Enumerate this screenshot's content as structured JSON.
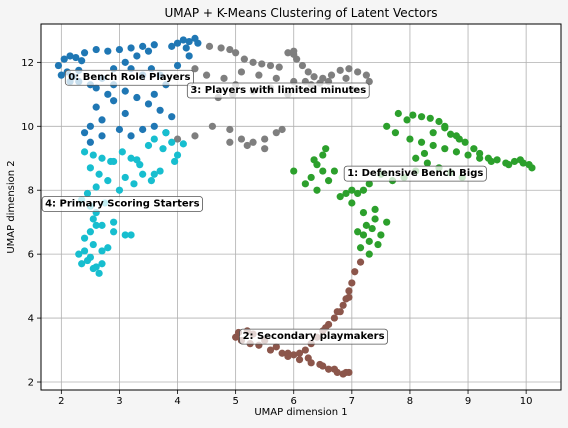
{
  "chart_data": {
    "type": "scatter",
    "title": "UMAP + K-Means Clustering of Latent Vectors",
    "xlabel": "UMAP dimension 1",
    "ylabel": "UMAP dimension 2",
    "xlim": [
      1.65,
      10.6
    ],
    "ylim": [
      1.75,
      13.2
    ],
    "xticks": [
      2,
      3,
      4,
      5,
      6,
      7,
      8,
      9,
      10
    ],
    "yticks": [
      2,
      4,
      6,
      8,
      10,
      12
    ],
    "grid": true,
    "clusters": [
      {
        "id": 0,
        "label": "0: Bench Role Players",
        "color": "#1f77b4",
        "label_pos": [
          2.12,
          11.55
        ],
        "points": [
          [
            2.05,
            12.1
          ],
          [
            2.15,
            12.2
          ],
          [
            2.25,
            12.15
          ],
          [
            2.35,
            12.05
          ],
          [
            1.95,
            11.9
          ],
          [
            2.1,
            11.7
          ],
          [
            2.2,
            11.55
          ],
          [
            2.3,
            11.4
          ],
          [
            2.5,
            11.3
          ],
          [
            2.6,
            11.2
          ],
          [
            2.4,
            12.3
          ],
          [
            2.6,
            12.4
          ],
          [
            2.8,
            12.35
          ],
          [
            3.0,
            12.4
          ],
          [
            3.2,
            12.45
          ],
          [
            3.4,
            12.5
          ],
          [
            3.6,
            12.55
          ],
          [
            3.5,
            12.35
          ],
          [
            3.3,
            12.2
          ],
          [
            3.1,
            12.0
          ],
          [
            2.9,
            11.8
          ],
          [
            2.7,
            11.5
          ],
          [
            2.9,
            11.3
          ],
          [
            3.1,
            11.1
          ],
          [
            3.3,
            10.9
          ],
          [
            3.5,
            10.7
          ],
          [
            3.7,
            10.5
          ],
          [
            3.9,
            10.3
          ],
          [
            3.6,
            11.0
          ],
          [
            3.8,
            11.3
          ],
          [
            3.4,
            11.6
          ],
          [
            3.2,
            11.8
          ],
          [
            2.8,
            11.0
          ],
          [
            2.6,
            10.6
          ],
          [
            2.7,
            10.2
          ],
          [
            2.5,
            10.0
          ],
          [
            2.4,
            9.8
          ],
          [
            2.7,
            9.7
          ],
          [
            2.5,
            9.5
          ],
          [
            2.9,
            10.8
          ],
          [
            3.1,
            10.4
          ],
          [
            3.0,
            9.9
          ],
          [
            3.2,
            9.7
          ],
          [
            3.4,
            9.9
          ],
          [
            3.6,
            10.0
          ],
          [
            3.8,
            9.8
          ],
          [
            4.0,
            12.6
          ],
          [
            4.1,
            12.7
          ],
          [
            4.2,
            12.65
          ],
          [
            4.3,
            12.75
          ],
          [
            4.35,
            12.6
          ],
          [
            4.15,
            12.45
          ],
          [
            3.9,
            12.5
          ],
          [
            3.7,
            11.6
          ],
          [
            4.0,
            11.9
          ],
          [
            4.2,
            12.2
          ],
          [
            3.55,
            11.8
          ],
          [
            2.3,
            11.75
          ],
          [
            2.0,
            11.6
          ],
          [
            2.15,
            11.4
          ]
        ]
      },
      {
        "id": 1,
        "label": "1: Defensive Bench Bigs",
        "color": "#2ca02c",
        "label_pos": [
          6.92,
          8.55
        ],
        "points": [
          [
            7.8,
            10.4
          ],
          [
            7.95,
            10.2
          ],
          [
            8.05,
            10.35
          ],
          [
            8.2,
            10.3
          ],
          [
            8.35,
            10.25
          ],
          [
            8.5,
            10.15
          ],
          [
            8.6,
            9.95
          ],
          [
            8.7,
            9.75
          ],
          [
            8.85,
            9.6
          ],
          [
            8.95,
            9.5
          ],
          [
            9.1,
            9.3
          ],
          [
            9.2,
            9.15
          ],
          [
            9.35,
            9.0
          ],
          [
            9.5,
            8.95
          ],
          [
            9.65,
            8.85
          ],
          [
            9.8,
            8.9
          ],
          [
            9.95,
            8.85
          ],
          [
            10.05,
            8.8
          ],
          [
            10.1,
            8.7
          ],
          [
            9.9,
            8.95
          ],
          [
            9.7,
            8.8
          ],
          [
            9.4,
            8.9
          ],
          [
            9.2,
            9.0
          ],
          [
            9.0,
            9.1
          ],
          [
            8.8,
            9.2
          ],
          [
            8.6,
            9.3
          ],
          [
            8.4,
            9.4
          ],
          [
            8.2,
            9.5
          ],
          [
            8.0,
            9.6
          ],
          [
            7.75,
            9.8
          ],
          [
            7.6,
            10.0
          ],
          [
            8.1,
            9.0
          ],
          [
            8.3,
            8.85
          ],
          [
            8.5,
            8.7
          ],
          [
            8.7,
            8.55
          ],
          [
            8.9,
            8.4
          ],
          [
            8.8,
            9.7
          ],
          [
            8.6,
            10.0
          ],
          [
            8.4,
            9.8
          ],
          [
            8.25,
            9.15
          ],
          [
            8.1,
            8.6
          ],
          [
            7.9,
            8.4
          ],
          [
            7.7,
            8.3
          ],
          [
            7.5,
            8.5
          ],
          [
            7.3,
            8.2
          ],
          [
            7.2,
            8.0
          ],
          [
            7.1,
            7.9
          ],
          [
            7.0,
            8.0
          ],
          [
            6.9,
            7.9
          ],
          [
            6.8,
            7.8
          ],
          [
            6.5,
            8.6
          ],
          [
            6.4,
            8.8
          ],
          [
            6.5,
            9.1
          ],
          [
            6.55,
            9.3
          ],
          [
            6.3,
            8.4
          ],
          [
            6.2,
            8.2
          ],
          [
            6.4,
            8.0
          ],
          [
            6.6,
            8.3
          ],
          [
            6.7,
            8.6
          ],
          [
            6.0,
            8.6
          ],
          [
            6.35,
            8.95
          ],
          [
            7.0,
            7.6
          ],
          [
            7.2,
            7.3
          ],
          [
            7.4,
            7.1
          ],
          [
            7.35,
            6.8
          ],
          [
            7.2,
            6.6
          ],
          [
            7.3,
            6.4
          ],
          [
            7.15,
            6.2
          ],
          [
            7.3,
            6.0
          ],
          [
            7.45,
            6.3
          ],
          [
            7.5,
            6.6
          ],
          [
            7.25,
            6.9
          ],
          [
            7.1,
            6.7
          ],
          [
            7.4,
            7.4
          ],
          [
            7.6,
            7.0
          ]
        ]
      },
      {
        "id": 2,
        "label": "2: Secondary playmakers",
        "color": "#8c564b",
        "label_pos": [
          5.12,
          3.45
        ],
        "points": [
          [
            7.15,
            5.75
          ],
          [
            7.05,
            5.45
          ],
          [
            7.0,
            5.1
          ],
          [
            6.95,
            4.85
          ],
          [
            6.9,
            4.6
          ],
          [
            6.85,
            4.4
          ],
          [
            6.8,
            4.2
          ],
          [
            6.7,
            4.0
          ],
          [
            6.6,
            3.8
          ],
          [
            6.5,
            3.6
          ],
          [
            6.4,
            3.4
          ],
          [
            6.3,
            3.2
          ],
          [
            6.2,
            3.0
          ],
          [
            6.1,
            2.9
          ],
          [
            6.0,
            2.85
          ],
          [
            5.9,
            2.8
          ],
          [
            5.8,
            2.9
          ],
          [
            6.5,
            2.5
          ],
          [
            6.6,
            2.4
          ],
          [
            6.75,
            2.3
          ],
          [
            6.85,
            2.25
          ],
          [
            6.95,
            2.3
          ],
          [
            6.3,
            2.6
          ],
          [
            6.1,
            2.7
          ],
          [
            5.9,
            2.9
          ],
          [
            5.6,
            3.0
          ],
          [
            5.4,
            3.15
          ],
          [
            5.25,
            3.2
          ],
          [
            5.1,
            3.3
          ],
          [
            5.0,
            3.4
          ],
          [
            5.05,
            3.55
          ],
          [
            5.2,
            3.6
          ],
          [
            5.3,
            3.5
          ],
          [
            5.5,
            3.3
          ],
          [
            5.7,
            3.1
          ],
          [
            6.25,
            2.75
          ],
          [
            6.45,
            2.55
          ],
          [
            6.7,
            2.4
          ],
          [
            6.9,
            2.3
          ],
          [
            6.95,
            4.65
          ],
          [
            6.75,
            4.2
          ],
          [
            6.55,
            3.7
          ]
        ]
      },
      {
        "id": 3,
        "label": "3: Players with limited minutes",
        "color": "#7f7f7f",
        "label_pos": [
          4.22,
          11.15
        ],
        "points": [
          [
            4.55,
            12.5
          ],
          [
            4.75,
            12.45
          ],
          [
            4.9,
            12.4
          ],
          [
            5.0,
            12.3
          ],
          [
            5.15,
            12.1
          ],
          [
            5.3,
            12.0
          ],
          [
            5.45,
            11.95
          ],
          [
            5.6,
            11.9
          ],
          [
            5.75,
            11.85
          ],
          [
            5.9,
            12.3
          ],
          [
            6.0,
            12.25
          ],
          [
            6.05,
            12.1
          ],
          [
            6.15,
            11.9
          ],
          [
            6.25,
            11.7
          ],
          [
            6.35,
            11.55
          ],
          [
            6.5,
            11.5
          ],
          [
            6.65,
            11.6
          ],
          [
            6.8,
            11.75
          ],
          [
            6.95,
            11.8
          ],
          [
            7.1,
            11.7
          ],
          [
            7.25,
            11.6
          ],
          [
            6.9,
            11.5
          ],
          [
            6.6,
            11.4
          ],
          [
            6.3,
            11.3
          ],
          [
            6.0,
            11.4
          ],
          [
            5.7,
            11.5
          ],
          [
            5.4,
            11.6
          ],
          [
            5.1,
            11.7
          ],
          [
            4.8,
            11.5
          ],
          [
            4.5,
            11.6
          ],
          [
            4.3,
            11.8
          ],
          [
            4.0,
            9.6
          ],
          [
            4.3,
            9.7
          ],
          [
            4.6,
            10.0
          ],
          [
            4.9,
            9.9
          ],
          [
            5.1,
            9.6
          ],
          [
            5.3,
            9.5
          ],
          [
            5.5,
            9.6
          ],
          [
            5.7,
            9.8
          ],
          [
            5.8,
            9.9
          ],
          [
            5.5,
            9.3
          ],
          [
            5.2,
            9.4
          ],
          [
            4.9,
            9.5
          ],
          [
            5.0,
            11.3
          ],
          [
            5.3,
            11.1
          ],
          [
            5.6,
            11.2
          ],
          [
            5.9,
            11.0
          ],
          [
            6.2,
            11.4
          ],
          [
            6.45,
            11.35
          ],
          [
            7.0,
            11.15
          ],
          [
            7.3,
            11.4
          ],
          [
            4.95,
            11.0
          ],
          [
            4.7,
            10.9
          ],
          [
            6.0,
            12.35
          ]
        ]
      },
      {
        "id": 4,
        "label": "4: Primary Scoring Starters",
        "color": "#17becf",
        "label_pos": [
          1.72,
          7.6
        ],
        "points": [
          [
            2.4,
            9.2
          ],
          [
            2.55,
            9.1
          ],
          [
            2.7,
            9.0
          ],
          [
            2.85,
            8.9
          ],
          [
            2.5,
            8.7
          ],
          [
            2.65,
            8.5
          ],
          [
            2.8,
            8.3
          ],
          [
            2.6,
            8.1
          ],
          [
            2.45,
            7.9
          ],
          [
            2.35,
            7.7
          ],
          [
            2.5,
            7.5
          ],
          [
            2.6,
            7.3
          ],
          [
            2.55,
            7.1
          ],
          [
            2.7,
            6.9
          ],
          [
            2.5,
            6.7
          ],
          [
            2.4,
            6.5
          ],
          [
            2.55,
            6.3
          ],
          [
            2.7,
            6.1
          ],
          [
            2.5,
            5.9
          ],
          [
            2.35,
            5.7
          ],
          [
            2.6,
            5.6
          ],
          [
            2.65,
            5.4
          ],
          [
            2.45,
            5.8
          ],
          [
            2.3,
            6.0
          ],
          [
            2.8,
            6.2
          ],
          [
            2.9,
            6.7
          ],
          [
            3.1,
            6.6
          ],
          [
            2.9,
            7.0
          ],
          [
            2.6,
            6.9
          ],
          [
            3.05,
            9.2
          ],
          [
            3.2,
            9.0
          ],
          [
            3.35,
            8.8
          ],
          [
            3.4,
            8.5
          ],
          [
            3.55,
            8.3
          ],
          [
            3.6,
            8.5
          ],
          [
            3.7,
            8.6
          ],
          [
            3.25,
            8.2
          ],
          [
            3.1,
            8.4
          ],
          [
            3.5,
            9.4
          ],
          [
            3.75,
            9.3
          ],
          [
            3.9,
            9.5
          ],
          [
            4.0,
            9.1
          ],
          [
            3.95,
            8.9
          ],
          [
            4.1,
            9.45
          ],
          [
            3.8,
            9.8
          ],
          [
            3.6,
            9.6
          ],
          [
            2.9,
            8.9
          ],
          [
            2.75,
            7.6
          ],
          [
            3.0,
            8.0
          ],
          [
            2.4,
            6.1
          ],
          [
            2.7,
            5.7
          ],
          [
            2.55,
            5.55
          ],
          [
            3.2,
            6.6
          ],
          [
            3.3,
            8.95
          ]
        ]
      }
    ]
  }
}
